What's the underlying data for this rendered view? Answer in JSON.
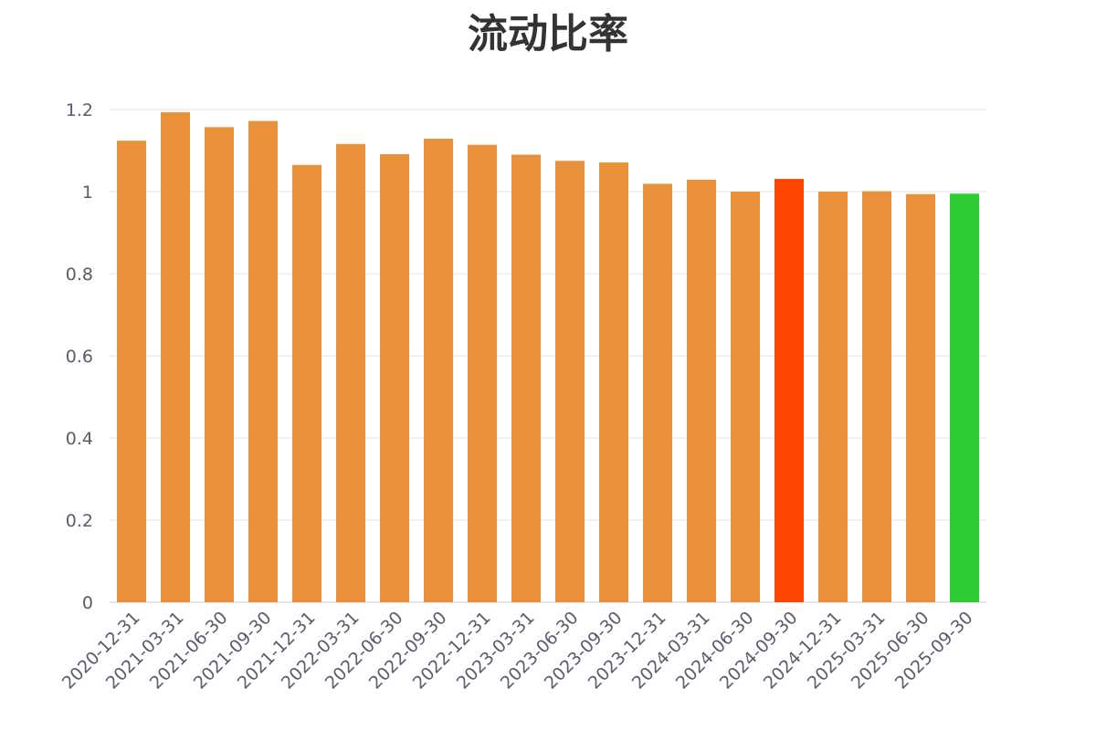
{
  "chart_data": {
    "type": "bar",
    "title": "流动比率",
    "xlabel": "",
    "ylabel": "",
    "ylim": [
      0,
      1.2
    ],
    "yticks": [
      0,
      0.2,
      0.4,
      0.6,
      0.8,
      1,
      1.2
    ],
    "ytick_labels": [
      "0",
      "0.2",
      "0.4",
      "0.6",
      "0.8",
      "1",
      "1.2"
    ],
    "grid": true,
    "legend": "none",
    "categories": [
      "2020-12-31",
      "2021-03-31",
      "2021-06-30",
      "2021-09-30",
      "2021-12-31",
      "2022-03-31",
      "2022-06-30",
      "2022-09-30",
      "2022-12-31",
      "2023-03-31",
      "2023-06-30",
      "2023-09-30",
      "2023-12-31",
      "2024-03-31",
      "2024-06-30",
      "2024-09-30",
      "2024-12-31",
      "2025-03-31",
      "2025-06-30",
      "2025-09-30"
    ],
    "values": [
      1.124,
      1.193,
      1.157,
      1.172,
      1.065,
      1.116,
      1.091,
      1.129,
      1.114,
      1.09,
      1.075,
      1.071,
      1.019,
      1.029,
      1.0,
      1.031,
      1.0,
      1.001,
      0.994,
      0.995
    ],
    "colors": {
      "default": "#e8913a",
      "highlight_max_recent": "#ff4500",
      "highlight_latest": "#2ecc33",
      "grid": "#dfe3ea",
      "axis": "#c9ccd6"
    },
    "bar_color_keys": [
      "default",
      "default",
      "default",
      "default",
      "default",
      "default",
      "default",
      "default",
      "default",
      "default",
      "default",
      "default",
      "default",
      "default",
      "default",
      "highlight_max_recent",
      "default",
      "default",
      "default",
      "highlight_latest"
    ]
  }
}
